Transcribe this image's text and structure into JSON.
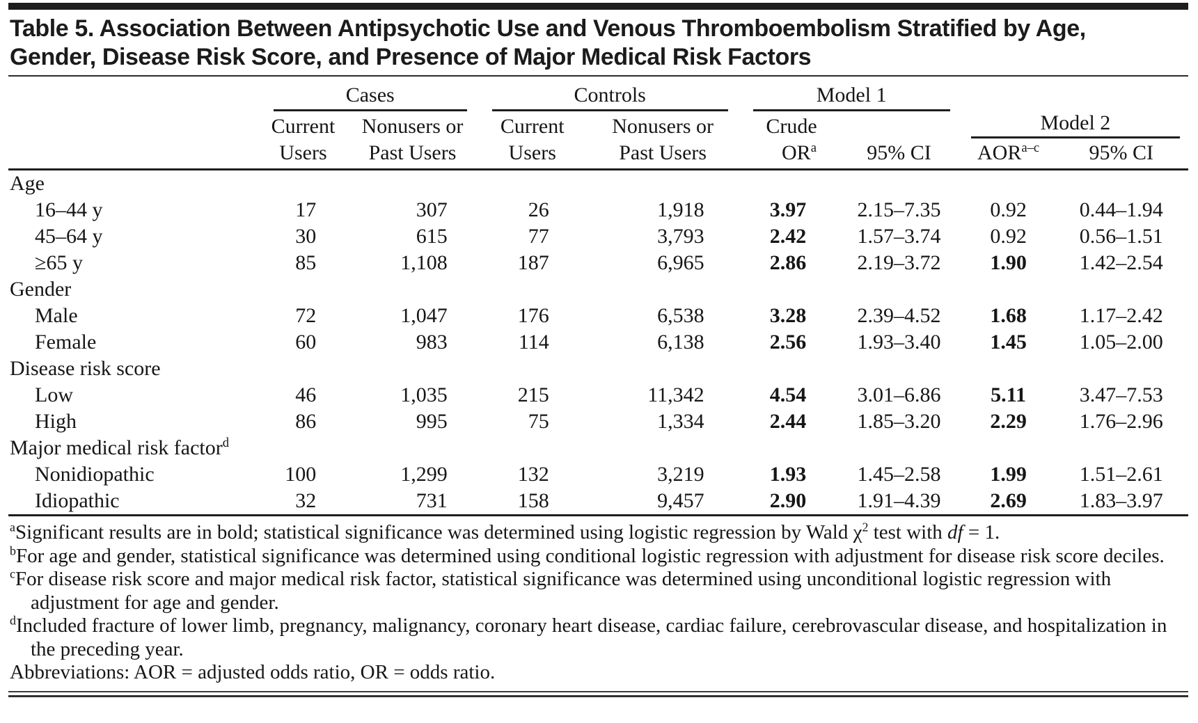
{
  "title_lines": [
    "Table 5. Association Between Antipsychotic Use and Venous Thromboembolism Stratified by Age,",
    "Gender, Disease Risk Score, and Presence of Major Medical Risk Factors"
  ],
  "header": {
    "spanners": {
      "cases": "Cases",
      "controls": "Controls",
      "model1": "Model 1",
      "model2": "Model 2"
    },
    "cols": {
      "cases_current": [
        "Current",
        "Users"
      ],
      "cases_nonusers": [
        "Nonusers or",
        "Past Users"
      ],
      "controls_current": [
        "Current",
        "Users"
      ],
      "controls_nonusers": [
        "Nonusers or",
        "Past Users"
      ],
      "crude_line1": "Crude",
      "crude_line2": "OR",
      "crude_sup": "a",
      "ci_model1": "95% CI",
      "aor": "AOR",
      "aor_sup": "a–c",
      "ci_model2": "95% CI"
    }
  },
  "rows": [
    {
      "type": "group",
      "label": "Age"
    },
    {
      "type": "data",
      "label": "16–44 y",
      "cells": [
        "17",
        "307",
        "26",
        "1,918",
        {
          "v": "3.97",
          "b": true
        },
        "2.15–7.35",
        {
          "v": "0.92",
          "b": false
        },
        "0.44–1.94"
      ]
    },
    {
      "type": "data",
      "label": "45–64 y",
      "cells": [
        "30",
        "615",
        "77",
        "3,793",
        {
          "v": "2.42",
          "b": true
        },
        "1.57–3.74",
        {
          "v": "0.92",
          "b": false
        },
        "0.56–1.51"
      ]
    },
    {
      "type": "data",
      "label": "≥65 y",
      "cells": [
        "85",
        "1,108",
        "187",
        "6,965",
        {
          "v": "2.86",
          "b": true
        },
        "2.19–3.72",
        {
          "v": "1.90",
          "b": true
        },
        "1.42–2.54"
      ]
    },
    {
      "type": "group",
      "label": "Gender"
    },
    {
      "type": "data",
      "label": "Male",
      "cells": [
        "72",
        "1,047",
        "176",
        "6,538",
        {
          "v": "3.28",
          "b": true
        },
        "2.39–4.52",
        {
          "v": "1.68",
          "b": true
        },
        "1.17–2.42"
      ]
    },
    {
      "type": "data",
      "label": "Female",
      "cells": [
        "60",
        "983",
        "114",
        "6,138",
        {
          "v": "2.56",
          "b": true
        },
        "1.93–3.40",
        {
          "v": "1.45",
          "b": true
        },
        "1.05–2.00"
      ]
    },
    {
      "type": "group",
      "label": "Disease risk score"
    },
    {
      "type": "data",
      "label": "Low",
      "cells": [
        "46",
        "1,035",
        "215",
        "11,342",
        {
          "v": "4.54",
          "b": true
        },
        "3.01–6.86",
        {
          "v": "5.11",
          "b": true
        },
        "3.47–7.53"
      ]
    },
    {
      "type": "data",
      "label": "High",
      "cells": [
        "86",
        "995",
        "75",
        "1,334",
        {
          "v": "2.44",
          "b": true
        },
        "1.85–3.20",
        {
          "v": "2.29",
          "b": true
        },
        "1.76–2.96"
      ]
    },
    {
      "type": "group",
      "label": "Major medical risk factor",
      "sup": "d"
    },
    {
      "type": "data",
      "label": "Nonidiopathic",
      "cells": [
        "100",
        "1,299",
        "132",
        "3,219",
        {
          "v": "1.93",
          "b": true
        },
        "1.45–2.58",
        {
          "v": "1.99",
          "b": true
        },
        "1.51–2.61"
      ]
    },
    {
      "type": "data",
      "label": "Idiopathic",
      "cells": [
        "32",
        "731",
        "158",
        "9,457",
        {
          "v": "2.90",
          "b": true
        },
        "1.91–4.39",
        {
          "v": "2.69",
          "b": true
        },
        "1.83–3.97"
      ]
    }
  ],
  "footnotes": [
    {
      "segments": [
        {
          "sup": "a"
        },
        {
          "t": "Significant results are in bold; statistical significance was determined using logistic regression by Wald χ"
        },
        {
          "sup": "2"
        },
        {
          "t": " test with "
        },
        {
          "i": "df"
        },
        {
          "t": " = 1."
        }
      ]
    },
    {
      "segments": [
        {
          "sup": "b"
        },
        {
          "t": "For age and gender, statistical significance was determined using conditional logistic regression with adjustment for disease risk score deciles."
        }
      ]
    },
    {
      "segments": [
        {
          "sup": "c"
        },
        {
          "t": "For disease risk score and major medical risk factor, statistical significance was determined using unconditional logistic regression with adjustment for age and gender."
        }
      ]
    },
    {
      "segments": [
        {
          "sup": "d"
        },
        {
          "t": "Included fracture of lower limb, pregnancy, malignancy, coronary heart disease, cardiac failure, cerebrovascular disease, and hospitalization in the preceding year."
        }
      ]
    },
    {
      "segments": [
        {
          "t": "Abbreviations: AOR = adjusted odds ratio, OR = odds ratio."
        }
      ]
    }
  ],
  "colors": {
    "ink": "#1b1b1b"
  }
}
